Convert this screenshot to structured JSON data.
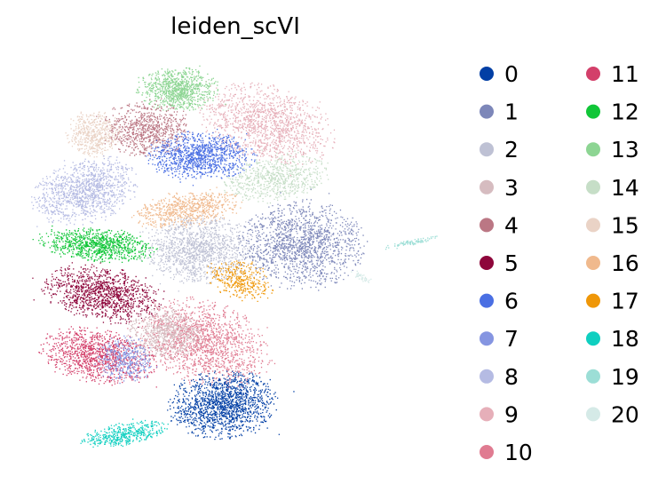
{
  "chart_data": {
    "type": "scatter",
    "title": "leiden_scVI",
    "xlabel": "",
    "ylabel": "",
    "grid": false,
    "axes_visible": false,
    "legend_placement": "right",
    "legend_columns": 2,
    "series": [
      {
        "name": "0",
        "color": "#023fa5"
      },
      {
        "name": "1",
        "color": "#7d87b9"
      },
      {
        "name": "2",
        "color": "#bec1d4"
      },
      {
        "name": "3",
        "color": "#d6bcc0"
      },
      {
        "name": "4",
        "color": "#bb7784"
      },
      {
        "name": "5",
        "color": "#8e063b"
      },
      {
        "name": "6",
        "color": "#4a6fe3"
      },
      {
        "name": "7",
        "color": "#8595e1"
      },
      {
        "name": "8",
        "color": "#b5bbe3"
      },
      {
        "name": "9",
        "color": "#e6afb9"
      },
      {
        "name": "10",
        "color": "#e07b91"
      },
      {
        "name": "11",
        "color": "#d33f6a"
      },
      {
        "name": "12",
        "color": "#11c638"
      },
      {
        "name": "13",
        "color": "#8dd593"
      },
      {
        "name": "14",
        "color": "#c6dec7"
      },
      {
        "name": "15",
        "color": "#ead3c6"
      },
      {
        "name": "16",
        "color": "#f0b98d"
      },
      {
        "name": "17",
        "color": "#ef9708"
      },
      {
        "name": "18",
        "color": "#0fcfc0"
      },
      {
        "name": "19",
        "color": "#9cded6"
      },
      {
        "name": "20",
        "color": "#d5eae7"
      }
    ]
  }
}
